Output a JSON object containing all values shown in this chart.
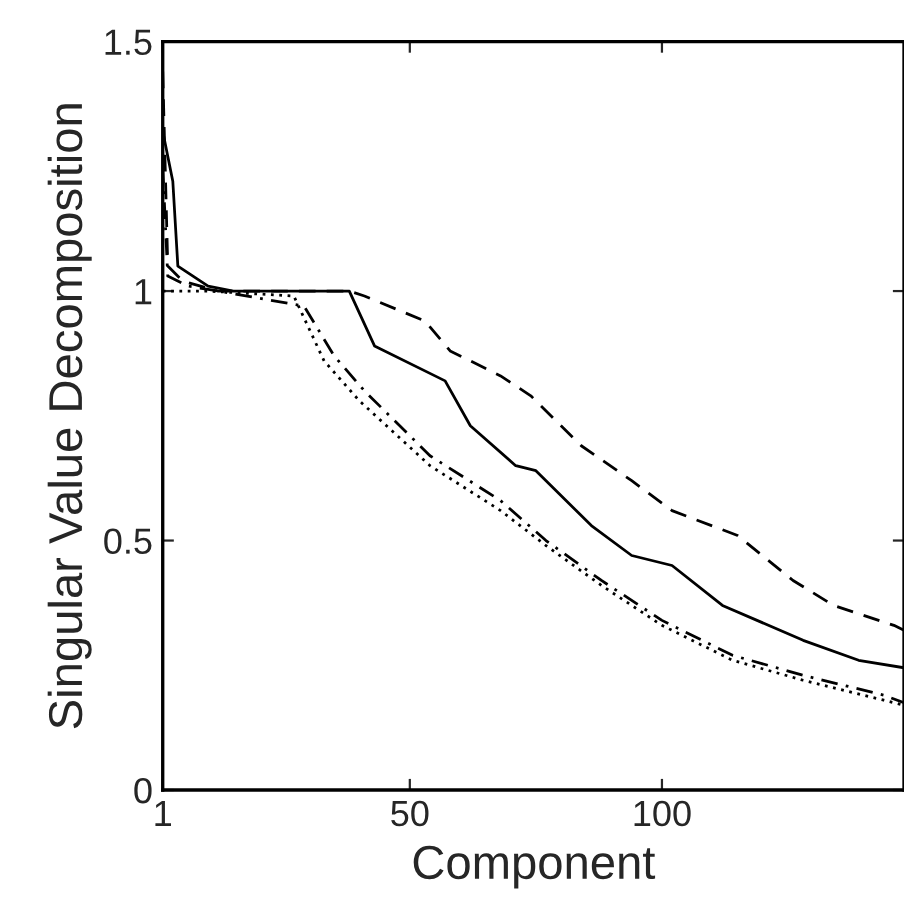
{
  "chart_data": {
    "type": "line",
    "xlabel": "Component",
    "ylabel": "Singular Value Decomposition",
    "xlim": [
      1,
      148
    ],
    "ylim": [
      0,
      1.5
    ],
    "xticks": [
      1,
      50,
      100
    ],
    "yticks": [
      0,
      0.5,
      1,
      1.5
    ],
    "grid": false,
    "series": [
      {
        "color": "#000000",
        "line_style": "solid",
        "x": [
          1,
          3,
          4,
          10,
          15,
          38,
          43,
          57,
          62,
          71,
          75,
          86,
          94,
          102,
          112,
          128,
          139,
          148
        ],
        "values": [
          1.32,
          1.22,
          1.05,
          1.01,
          1.0,
          1.0,
          0.89,
          0.82,
          0.73,
          0.65,
          0.64,
          0.53,
          0.47,
          0.45,
          0.37,
          0.3,
          0.26,
          0.245
        ]
      },
      {
        "color": "#000000",
        "line_style": "dashed",
        "x": [
          1,
          2,
          5,
          12,
          38,
          41,
          53,
          58,
          68,
          74,
          84,
          94,
          102,
          115,
          126,
          134,
          146,
          148
        ],
        "values": [
          1.44,
          1.05,
          1.02,
          1.0,
          1.0,
          0.99,
          0.94,
          0.88,
          0.83,
          0.79,
          0.69,
          0.62,
          0.56,
          0.51,
          0.42,
          0.37,
          0.33,
          0.32
        ]
      },
      {
        "color": "#000000",
        "line_style": "dashdot",
        "x": [
          1,
          2,
          6,
          12,
          29,
          35,
          41,
          54,
          68,
          77,
          88,
          100,
          114,
          128,
          144,
          148
        ],
        "values": [
          1.25,
          1.03,
          1.01,
          1.0,
          0.97,
          0.87,
          0.8,
          0.67,
          0.58,
          0.5,
          0.42,
          0.34,
          0.27,
          0.23,
          0.19,
          0.175
        ]
      },
      {
        "color": "#000000",
        "line_style": "dotted",
        "x": [
          1,
          10,
          27,
          33,
          40,
          54,
          68,
          77,
          88,
          100,
          114,
          128,
          144,
          148
        ],
        "values": [
          1.0,
          1.0,
          0.99,
          0.86,
          0.78,
          0.65,
          0.56,
          0.49,
          0.41,
          0.33,
          0.26,
          0.22,
          0.18,
          0.17
        ]
      }
    ]
  }
}
